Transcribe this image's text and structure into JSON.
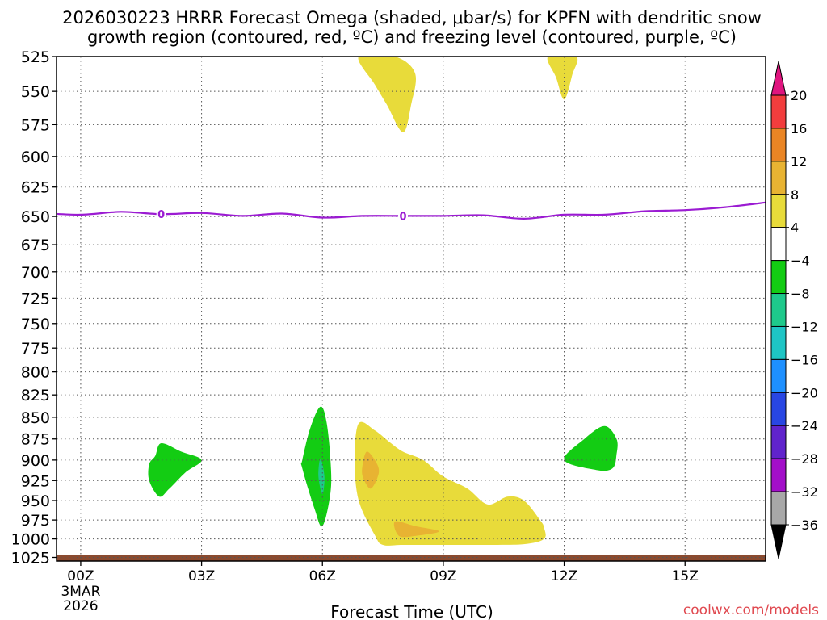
{
  "title_line1": "2026030223 HRRR Forecast Omega (shaded, μbar/s) for KPFN with dendritic snow",
  "title_line2": "growth region (contoured, red, ºC) and freezing level (contoured, purple, ºC)",
  "watermark": "coolwx.com/models",
  "chart_data": {
    "type": "heatmap",
    "title": "2026030223 HRRR Forecast Omega (shaded, μbar/s) for KPFN with dendritic snow growth region (contoured, red, ºC) and freezing level (contoured, purple, ºC)",
    "xlabel": "Forecast Time (UTC)",
    "ylabel": "",
    "x_range_hours": [
      -0.6,
      17.0
    ],
    "y_range_hPa": [
      525,
      1030
    ],
    "x_ticks": [
      {
        "hour": 0,
        "label": "00Z"
      },
      {
        "hour": 3,
        "label": "03Z"
      },
      {
        "hour": 6,
        "label": "06Z"
      },
      {
        "hour": 9,
        "label": "09Z"
      },
      {
        "hour": 12,
        "label": "12Z"
      },
      {
        "hour": 15,
        "label": "15Z"
      }
    ],
    "date_label": [
      "3MAR",
      "2026"
    ],
    "y_ticks": [
      525,
      550,
      575,
      600,
      625,
      650,
      675,
      700,
      725,
      750,
      775,
      800,
      825,
      850,
      875,
      900,
      925,
      950,
      975,
      1000,
      1025
    ],
    "grid": true,
    "colorbar": {
      "levels": [
        "20",
        "16",
        "12",
        "8",
        "4",
        "−4",
        "−8",
        "−12",
        "−16",
        "−20",
        "−24",
        "−28",
        "−32",
        "−36"
      ],
      "colors": [
        "#f23d3d",
        "#ea8524",
        "#e8b332",
        "#e8db3a",
        "#ffffff",
        "#13cc13",
        "#1ec98b",
        "#1ec5c5",
        "#1e90ff",
        "#2846e3",
        "#6023cc",
        "#a30fc9",
        "#a8a8a8"
      ],
      "top_cap": "#e0157f",
      "bottom_cap": "#000000"
    },
    "freezing_level": {
      "label": "0",
      "label_hours": [
        2.0,
        8.0
      ],
      "points": [
        [
          -1,
          647
        ],
        [
          0,
          648.5
        ],
        [
          1,
          646
        ],
        [
          2,
          648
        ],
        [
          3,
          647
        ],
        [
          4,
          649.5
        ],
        [
          5,
          647.5
        ],
        [
          6,
          651
        ],
        [
          7,
          649.5
        ],
        [
          8,
          649.5
        ],
        [
          9,
          649.5
        ],
        [
          10,
          649
        ],
        [
          11,
          652
        ],
        [
          12,
          648.5
        ],
        [
          13,
          648.5
        ],
        [
          14,
          645.5
        ],
        [
          15,
          644.5
        ],
        [
          16,
          642
        ],
        [
          17,
          638
        ]
      ]
    },
    "omega_regions": [
      {
        "value_range": "4 to 8",
        "color": "#e8db3a",
        "points": [
          [
            6.9,
            525
          ],
          [
            7.8,
            525
          ],
          [
            8.3,
            537
          ],
          [
            8.2,
            560
          ],
          [
            8.0,
            581
          ],
          [
            7.6,
            560
          ],
          [
            7.3,
            545
          ]
        ]
      },
      {
        "value_range": "4 to 8",
        "color": "#e8db3a",
        "points": [
          [
            11.6,
            525
          ],
          [
            12.3,
            525
          ],
          [
            12.2,
            538
          ],
          [
            12.0,
            556
          ],
          [
            11.8,
            540
          ]
        ]
      },
      {
        "value_range": "4 to 8",
        "color": "#e8db3a",
        "points": [
          [
            6.9,
            857
          ],
          [
            7.3,
            865
          ],
          [
            7.7,
            880
          ],
          [
            8.0,
            890
          ],
          [
            8.5,
            900
          ],
          [
            9.0,
            920
          ],
          [
            9.6,
            935
          ],
          [
            10.1,
            955
          ],
          [
            10.6,
            945
          ],
          [
            11.0,
            950
          ],
          [
            11.4,
            975
          ],
          [
            11.5,
            985
          ],
          [
            11.5,
            1000
          ],
          [
            11.0,
            1007
          ],
          [
            10.0,
            1008
          ],
          [
            9.0,
            1008
          ],
          [
            8.0,
            1008
          ],
          [
            7.5,
            1008
          ],
          [
            7.3,
            995
          ],
          [
            6.9,
            950
          ],
          [
            6.8,
            900
          ]
        ]
      },
      {
        "value_range": "8 to 12",
        "color": "#e8b332",
        "points": [
          [
            7.1,
            890
          ],
          [
            7.3,
            900
          ],
          [
            7.4,
            915
          ],
          [
            7.2,
            935
          ],
          [
            7.0,
            920
          ],
          [
            7.0,
            905
          ]
        ]
      },
      {
        "value_range": "8 to 12",
        "color": "#e8b332",
        "points": [
          [
            7.8,
            977
          ],
          [
            8.3,
            983
          ],
          [
            8.9,
            990
          ],
          [
            8.3,
            996
          ],
          [
            7.9,
            996
          ]
        ]
      },
      {
        "value_range": "-8 to -4",
        "color": "#13cc13",
        "points": [
          [
            2.0,
            880
          ],
          [
            2.5,
            890
          ],
          [
            3.0,
            900
          ],
          [
            2.6,
            915
          ],
          [
            2.2,
            935
          ],
          [
            1.95,
            945
          ],
          [
            1.7,
            925
          ],
          [
            1.7,
            905
          ],
          [
            1.85,
            895
          ]
        ]
      },
      {
        "value_range": "-8 to -4",
        "color": "#13cc13",
        "points": [
          [
            5.95,
            838
          ],
          [
            6.1,
            855
          ],
          [
            6.2,
            900
          ],
          [
            6.2,
            940
          ],
          [
            6.0,
            983
          ],
          [
            5.8,
            960
          ],
          [
            5.5,
            910
          ],
          [
            5.5,
            900
          ],
          [
            5.7,
            862
          ]
        ]
      },
      {
        "value_range": "-12 to -8",
        "color": "#1ec98b",
        "points": [
          [
            5.95,
            898
          ],
          [
            6.05,
            920
          ],
          [
            6.0,
            942
          ],
          [
            5.9,
            920
          ]
        ]
      },
      {
        "value_range": "-8 to -4",
        "color": "#13cc13",
        "points": [
          [
            13.0,
            860
          ],
          [
            13.3,
            875
          ],
          [
            13.3,
            893
          ],
          [
            13.2,
            910
          ],
          [
            12.8,
            912
          ],
          [
            12.0,
            900
          ],
          [
            12.5,
            875
          ]
        ]
      }
    ],
    "ground": {
      "color": "#8a4a2f",
      "top_hPa": 1022
    }
  }
}
